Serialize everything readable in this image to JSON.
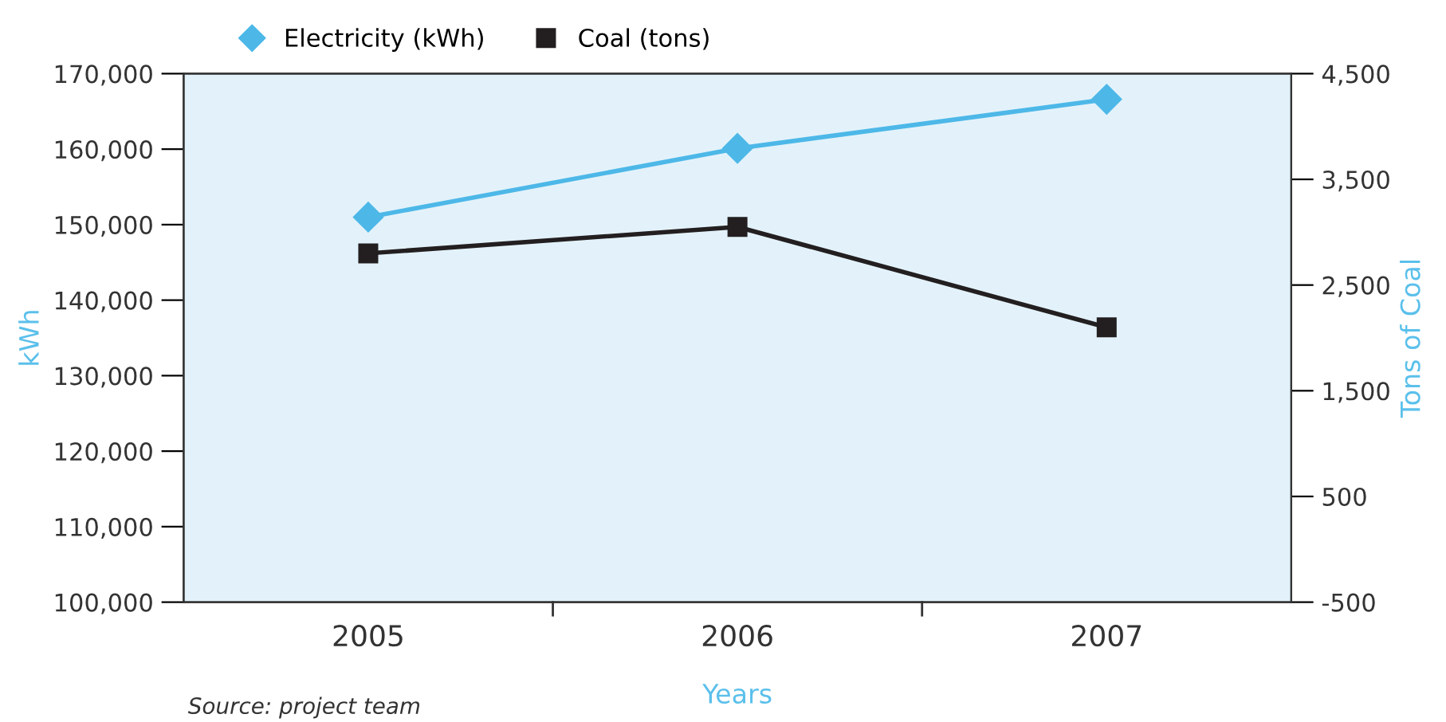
{
  "chart_data": {
    "type": "line",
    "categories": [
      "2005",
      "2006",
      "2007"
    ],
    "xlabel": "Years",
    "ylabel": "kWh",
    "y2label": "Tons of Coal",
    "legend": "top",
    "grid": false,
    "series": [
      {
        "name": "Electricity (kWh)",
        "color": "#4db8e8",
        "values": [
          151000,
          160100,
          166600
        ],
        "marker": "diamond"
      },
      {
        "name": "Coal (tons)",
        "color": "#231f20",
        "values": [
          2800,
          3050,
          2100
        ],
        "axis": "y2",
        "marker": "square"
      }
    ],
    "ylim": [
      100000,
      170000
    ],
    "yticks": [
      {
        "value": 100000,
        "label": "100,000"
      },
      {
        "value": 110000,
        "label": "110,000"
      },
      {
        "value": 120000,
        "label": "120,000"
      },
      {
        "value": 130000,
        "label": "130,000"
      },
      {
        "value": 140000,
        "label": "140,000"
      },
      {
        "value": 150000,
        "label": "150,000"
      },
      {
        "value": 160000,
        "label": "160,000"
      },
      {
        "value": 170000,
        "label": "170,000"
      }
    ],
    "y2lim": [
      -500,
      4500
    ],
    "y2ticks": [
      -500,
      {
        "value": 500,
        "label": "500"
      },
      {
        "value": 1500,
        "label": "1,500"
      },
      {
        "value": 2500,
        "label": "2,500"
      },
      {
        "value": 3500,
        "label": "3,500"
      },
      {
        "value": 4500,
        "label": "4,500"
      }
    ],
    "annotations": [
      "Source: project team"
    ]
  }
}
